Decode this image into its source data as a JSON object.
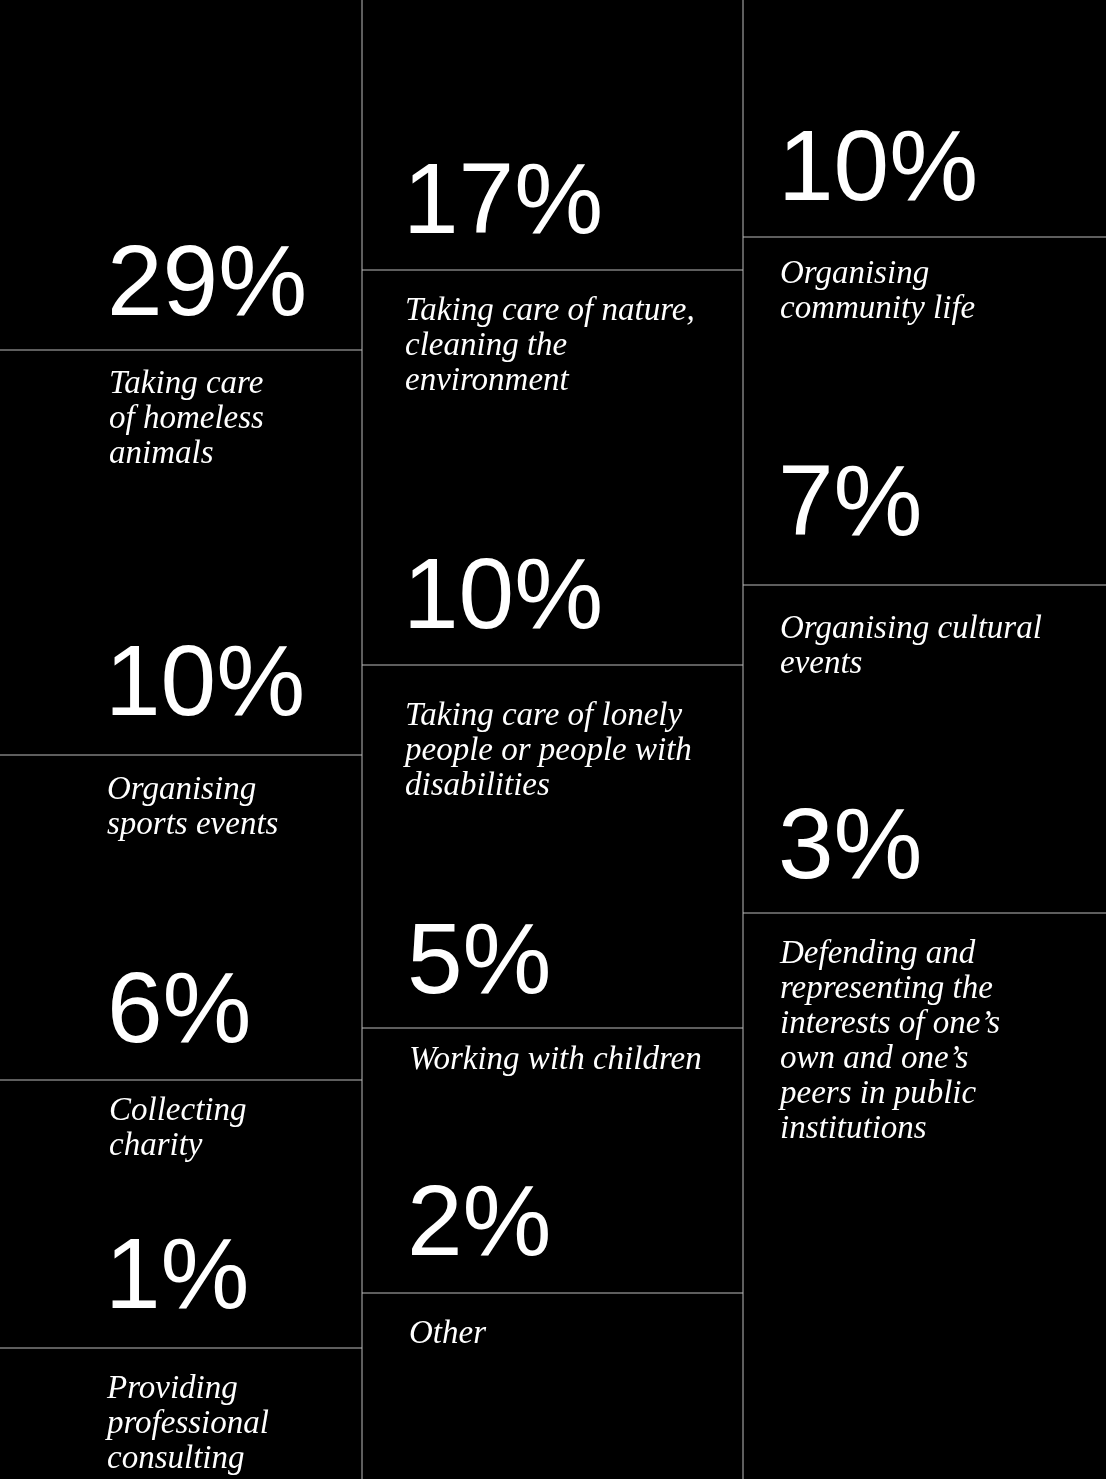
{
  "chart_data": {
    "type": "other",
    "categories": [
      "Taking care of homeless animals",
      "Organising sports events",
      "Collecting charity",
      "Providing professional consulting",
      "Taking care of nature, cleaning the environment",
      "Taking care of lonely people or people with disabilities",
      "Working with children",
      "Other",
      "Organising community life",
      "Organising cultural events",
      "Defending and representing the interests of one’s own and one’s peers in public institutions"
    ],
    "values": [
      29,
      10,
      6,
      1,
      17,
      10,
      5,
      2,
      10,
      7,
      3
    ],
    "value_labels": [
      "29%",
      "10%",
      "6%",
      "1%",
      "17%",
      "10%",
      "5%",
      "2%",
      "10%",
      "7%",
      "3%"
    ]
  }
}
